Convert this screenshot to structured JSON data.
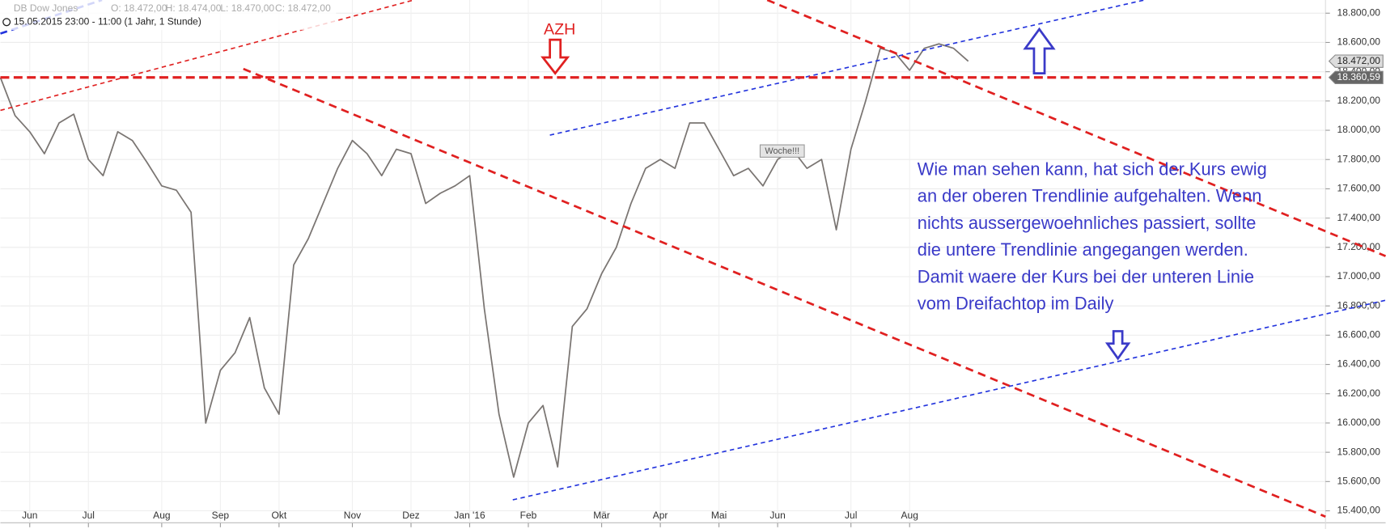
{
  "chart_data": {
    "type": "line",
    "title": "DB Dow Jones",
    "ohlc": [
      "O: 18.472,00",
      "H: 18.474,00",
      "L: 18.470,00",
      "C: 18.472,00"
    ],
    "subtitle": "15.05.2015 23:00 - 11:00 (1 Jahr, 1 Stunde)",
    "categories": [
      null,
      null,
      "Jun",
      null,
      null,
      null,
      "Jul",
      null,
      null,
      null,
      null,
      "Aug",
      null,
      null,
      null,
      "Sep",
      null,
      null,
      null,
      "Okt",
      null,
      null,
      null,
      null,
      "Nov",
      null,
      null,
      null,
      "Dez",
      null,
      null,
      null,
      "Jan '16",
      null,
      null,
      null,
      "Feb",
      null,
      null,
      null,
      null,
      "Mär",
      null,
      null,
      null,
      "Apr",
      null,
      null,
      null,
      "Mai",
      null,
      null,
      null,
      "Jun",
      null,
      null,
      null,
      null,
      "Jul",
      null,
      null,
      null,
      "Aug",
      null,
      null,
      null,
      null
    ],
    "series": [
      {
        "name": "DB Dow Jones",
        "color": "#7a7572",
        "values": [
          18360,
          18100,
          17990,
          17840,
          18050,
          18110,
          17800,
          17690,
          17990,
          17930,
          17780,
          17620,
          17590,
          17440,
          16000,
          16360,
          16480,
          16720,
          16240,
          16060,
          17080,
          17260,
          17500,
          17740,
          17930,
          17840,
          17690,
          17870,
          17840,
          17500,
          17570,
          17620,
          17690,
          16780,
          16060,
          15630,
          16000,
          16120,
          15700,
          16660,
          16780,
          17020,
          17200,
          17500,
          17740,
          17800,
          17740,
          18050,
          18050,
          17870,
          17690,
          17740,
          17620,
          17800,
          17870,
          17740,
          17800,
          17320,
          17870,
          18200,
          18560,
          18530,
          18410,
          18560,
          18590,
          18560,
          18472
        ]
      }
    ],
    "ylim": [
      15330,
      18890
    ],
    "yticks": [
      {
        "value": 15400,
        "label": "15.400,00"
      },
      {
        "value": 15600,
        "label": "15.600,00"
      },
      {
        "value": 15800,
        "label": "15.800,00"
      },
      {
        "value": 16000,
        "label": "16.000,00"
      },
      {
        "value": 16200,
        "label": "16.200,00"
      },
      {
        "value": 16400,
        "label": "16.400,00"
      },
      {
        "value": 16600,
        "label": "16.600,00"
      },
      {
        "value": 16800,
        "label": "16.800,00"
      },
      {
        "value": 17000,
        "label": "17.000,00"
      },
      {
        "value": 17200,
        "label": "17.200,00"
      },
      {
        "value": 17400,
        "label": "17.400,00"
      },
      {
        "value": 17600,
        "label": "17.600,00"
      },
      {
        "value": 17800,
        "label": "17.800,00"
      },
      {
        "value": 18000,
        "label": "18.000,00"
      },
      {
        "value": 18200,
        "label": "18.200,00"
      },
      {
        "value": 18400,
        "label": "18.400,00"
      },
      {
        "value": 18600,
        "label": "18.600,00"
      },
      {
        "value": 18800,
        "label": "18.800,00"
      }
    ],
    "grid": true,
    "price_markers": [
      {
        "value": 18472,
        "label": "18.472,00"
      },
      {
        "value": 18360.59,
        "label": "18.360,59"
      }
    ],
    "annotation": "AZH",
    "badge": "Woche!!!",
    "note_lines": [
      "Wie man sehen kann, hat sich der Kurs ewig",
      "an der oberen Trendlinie aufgehalten. Wenn",
      "nichts aussergewoehnliches passiert, sollte",
      "die untere Trendlinie angegangen werden.",
      "Damit waere der Kurs bei der unteren Linie",
      "vom Dreifachtop im Daily"
    ]
  }
}
